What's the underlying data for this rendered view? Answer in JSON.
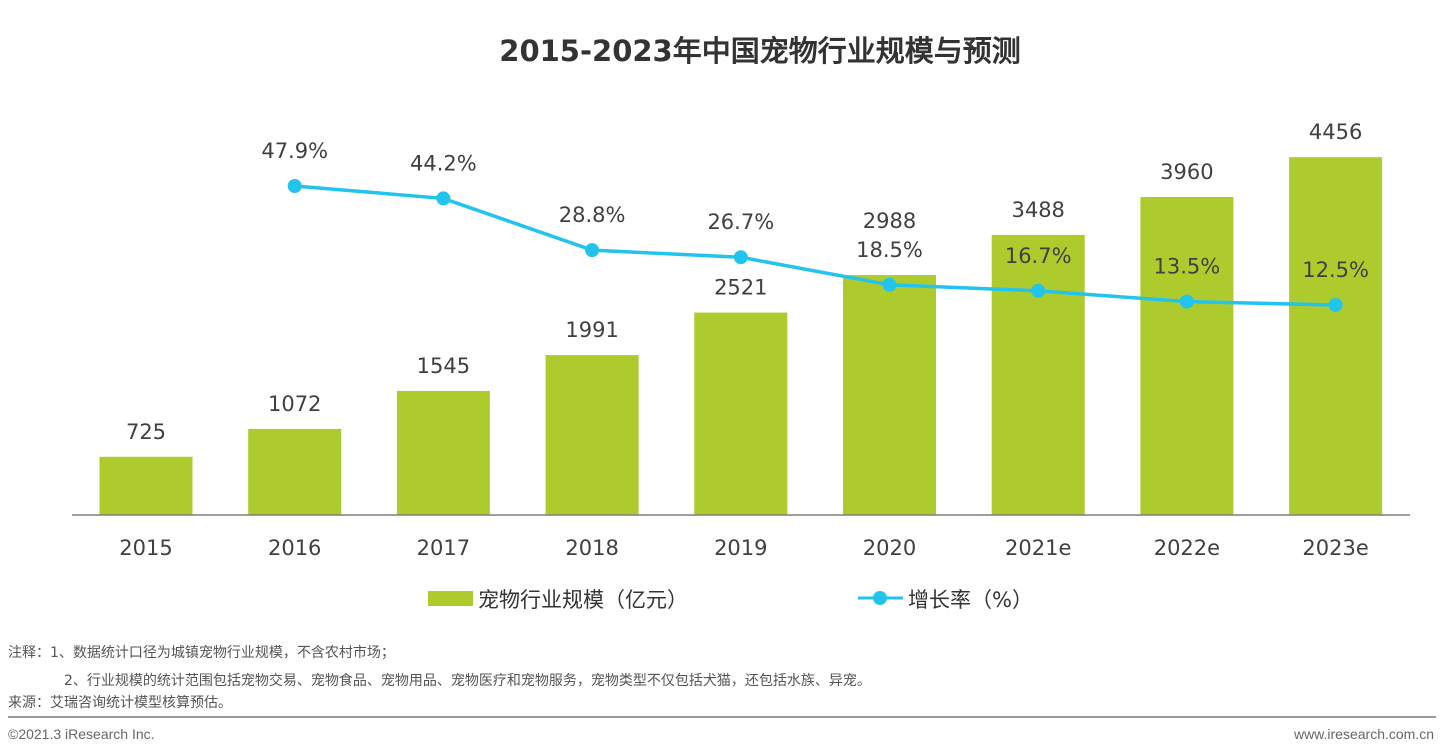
{
  "chart_data": {
    "type": "bar+line",
    "title": "2015-2023年中国宠物行业规模与预测",
    "categories": [
      "2015",
      "2016",
      "2017",
      "2018",
      "2019",
      "2020",
      "2021e",
      "2022e",
      "2023e"
    ],
    "series": [
      {
        "name": "宠物行业规模（亿元）",
        "type": "bar",
        "axis": "primary",
        "color": "#aecb2e",
        "values": [
          725,
          1072,
          1545,
          1991,
          2521,
          2988,
          3488,
          3960,
          4456
        ]
      },
      {
        "name": "增长率（%）",
        "type": "line",
        "axis": "secondary",
        "color": "#22c3ec",
        "values": [
          null,
          47.9,
          44.2,
          28.8,
          26.7,
          18.5,
          16.7,
          13.5,
          12.5
        ],
        "labels": [
          "",
          "47.9%",
          "44.2%",
          "28.8%",
          "26.7%",
          "18.5%",
          "16.7%",
          "13.5%",
          "12.5%"
        ]
      }
    ],
    "grid": false,
    "y_axis_visible": false,
    "legend": "bottom"
  },
  "notes": {
    "note1": "注释：1、数据统计口径为城镇宠物行业规模，不含农村市场；",
    "note2": "2、行业规模的统计范围包括宠物交易、宠物食品、宠物用品、宠物医疗和宠物服务，宠物类型不仅包括犬猫，还包括水族、异宠。",
    "source": "来源：艾瑞咨询统计模型核算预估。"
  },
  "footer": {
    "copyright": "©2021.3 iResearch Inc.",
    "website": "www.iresearch.com.cn"
  }
}
